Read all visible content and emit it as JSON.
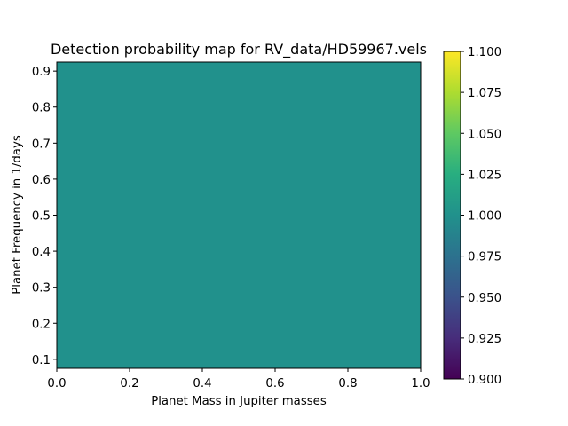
{
  "chart_data": {
    "type": "heatmap",
    "title": "Detection probability map for RV_data/HD59967.vels",
    "xlabel": "Planet Mass in Jupiter masses",
    "ylabel": "Planet Frequency in 1/days",
    "xlim": [
      0.0,
      1.0
    ],
    "ylim": [
      0.075,
      0.925
    ],
    "x_ticks": [
      "0.0",
      "0.2",
      "0.4",
      "0.6",
      "0.8",
      "1.0"
    ],
    "y_ticks": [
      "0.1",
      "0.2",
      "0.3",
      "0.4",
      "0.5",
      "0.6",
      "0.7",
      "0.8",
      "0.9"
    ],
    "values": [
      [
        1.0
      ]
    ],
    "colormap": "viridis",
    "fill_color": "#21918c",
    "colorbar": {
      "range": [
        0.9,
        1.1
      ],
      "ticks": [
        "0.900",
        "0.925",
        "0.950",
        "0.975",
        "1.000",
        "1.025",
        "1.050",
        "1.075",
        "1.100"
      ]
    }
  }
}
